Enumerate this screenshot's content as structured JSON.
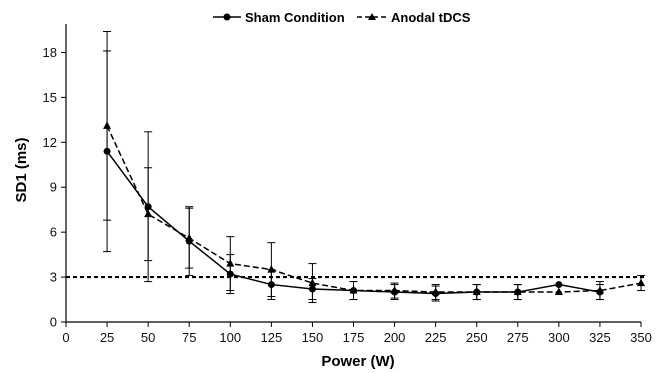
{
  "chart_data": {
    "type": "line",
    "title": "",
    "xlabel": "Power (W)",
    "ylabel": "SD1 (ms)",
    "xlim": [
      0,
      350
    ],
    "ylim": [
      0,
      19.5
    ],
    "x_ticks": [
      0,
      25,
      50,
      75,
      100,
      125,
      150,
      175,
      200,
      225,
      250,
      275,
      300,
      325,
      350
    ],
    "y_ticks": [
      0,
      3,
      6,
      9,
      12,
      15,
      18
    ],
    "grid": false,
    "legend_position": "top-center",
    "reference_line": {
      "y": 3,
      "style": "dotted"
    },
    "series": [
      {
        "name": "Sham Condition",
        "marker": "circle",
        "line_style": "solid",
        "color": "#000000",
        "x": [
          25,
          50,
          75,
          100,
          125,
          150,
          175,
          200,
          225,
          250,
          275,
          300,
          325
        ],
        "y": [
          11.4,
          7.7,
          5.4,
          3.2,
          2.5,
          2.2,
          2.1,
          2.0,
          1.9,
          2.0,
          2.0,
          2.5,
          2.0
        ],
        "error": [
          6.7,
          5.0,
          2.3,
          1.3,
          1.0,
          0.7,
          0.6,
          0.5,
          0.5,
          0.5,
          0.5,
          0.0,
          0.5
        ]
      },
      {
        "name": "Anodal tDCS",
        "marker": "triangle",
        "line_style": "dashed",
        "color": "#000000",
        "x": [
          25,
          50,
          75,
          100,
          125,
          150,
          175,
          200,
          225,
          250,
          275,
          300,
          325,
          350
        ],
        "y": [
          13.1,
          7.2,
          5.6,
          3.9,
          3.5,
          2.6,
          2.1,
          2.1,
          2.0,
          2.0,
          2.0,
          2.0,
          2.1,
          2.6
        ],
        "error": [
          6.3,
          3.1,
          2.0,
          1.8,
          1.8,
          1.3,
          0.6,
          0.5,
          0.5,
          0.5,
          0.5,
          0.0,
          0.6,
          0.5
        ]
      }
    ]
  }
}
